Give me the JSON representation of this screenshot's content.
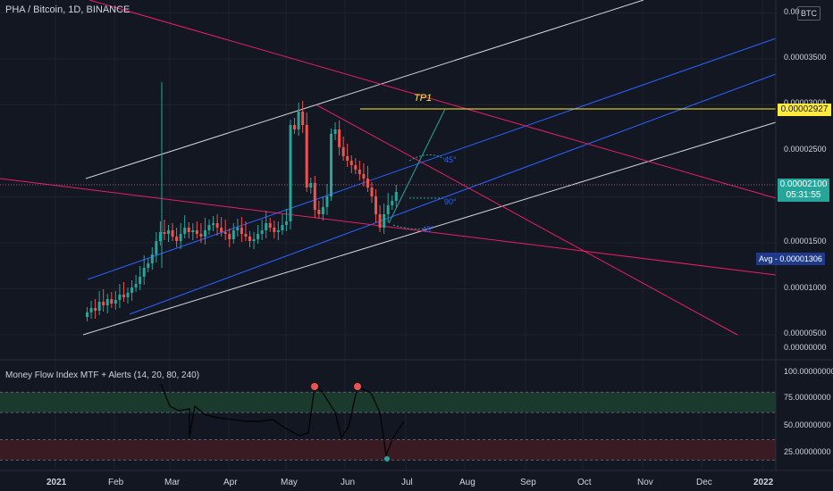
{
  "header": {
    "symbol_title": "PHA / Bitcoin, 1D, BINANCE",
    "currency_badge": "BTC"
  },
  "price_axis": {
    "top_label": "0.00",
    "ticks": [
      "0.00003500",
      "0.00003000",
      "0.00002500",
      "0.00001500",
      "0.00001000",
      "0.00000500",
      "0.00000000"
    ],
    "tick_values": [
      3.5e-05,
      3e-05,
      2.5e-05,
      1.5e-05,
      1e-05,
      5e-06,
      0.0
    ]
  },
  "badges": {
    "tp_price": "0.00002927",
    "last_price": "0.00002100",
    "countdown": "05:31:55",
    "avg_label": "Avg",
    "avg_value": "0.00001306"
  },
  "drawings": {
    "tp_label": "TP1",
    "angle_labels": [
      "45°",
      "90°",
      "45°"
    ]
  },
  "indicator": {
    "title": "Money Flow Index MTF + Alerts (14, 20, 80, 240)",
    "axis_ticks": [
      "100.00000000",
      "75.00000000",
      "50.00000000",
      "25.00000000"
    ],
    "axis_values": [
      100,
      75,
      50,
      25
    ],
    "upper_band": 80,
    "lower_band": 20
  },
  "time_axis": {
    "labels": [
      "2021",
      "Feb",
      "Mar",
      "Apr",
      "May",
      "Jun",
      "Jul",
      "Aug",
      "Sep",
      "Oct",
      "Nov",
      "Dec",
      "2022"
    ]
  },
  "colors": {
    "background": "#131722",
    "up": "#26a69a",
    "down": "#ef5350",
    "channel_white": "#d1d4dc",
    "channel_blue": "#2962ff",
    "trend_magenta": "#e91e63",
    "tp_yellow": "#ffeb3b",
    "last_price_teal": "#26a69a",
    "avg_navy": "#1e3a8a"
  }
}
